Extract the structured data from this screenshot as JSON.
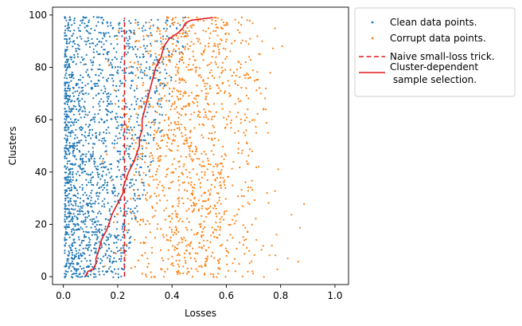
{
  "chart_data": {
    "type": "scatter",
    "xlabel": "Losses",
    "ylabel": "Clusters",
    "xlim": [
      -0.04,
      1.05
    ],
    "ylim": [
      -3,
      103
    ],
    "xticks": [
      "0.0",
      "0.2",
      "0.4",
      "0.6",
      "0.8",
      "1.0"
    ],
    "yticks": [
      "0",
      "20",
      "40",
      "60",
      "80",
      "100"
    ],
    "grid": false,
    "legend_placement": "outside-top-right",
    "legend": [
      {
        "label": "Clean data points.",
        "marker": "dot",
        "color": "#1f77b4"
      },
      {
        "label": "Corrupt data points.",
        "marker": "dot",
        "color": "#ff7f0e"
      },
      {
        "label": "Naive small-loss trick.",
        "marker": "dashed-line",
        "color": "#e31a1c"
      },
      {
        "label": "Cluster-dependent\n sample selection.",
        "marker": "solid-line",
        "color": "#e31a1c"
      }
    ],
    "series": [
      {
        "name": "Clean data points.",
        "kind": "scatter",
        "color": "#1f77b4",
        "distribution": {
          "clusters": [
            0,
            99
          ],
          "loss_range": [
            0.0,
            0.45
          ],
          "points_per_cluster": 18,
          "concentration_near_zero": true
        }
      },
      {
        "name": "Corrupt data points.",
        "kind": "scatter",
        "color": "#ff7f0e",
        "distribution": {
          "clusters": [
            0,
            99
          ],
          "loss_range": [
            0.1,
            1.0
          ],
          "points_per_cluster": 12,
          "center": 0.42
        }
      },
      {
        "name": "Naive small-loss trick.",
        "kind": "vline",
        "color": "#e31a1c",
        "x": 0.225,
        "y_range": [
          0,
          99
        ]
      },
      {
        "name": "Cluster-dependent\n sample selection.",
        "kind": "line",
        "color": "#e31a1c",
        "points": [
          [
            0.08,
            0
          ],
          [
            0.09,
            2
          ],
          [
            0.11,
            3
          ],
          [
            0.12,
            5
          ],
          [
            0.12,
            7
          ],
          [
            0.13,
            10
          ],
          [
            0.14,
            14
          ],
          [
            0.15,
            16
          ],
          [
            0.16,
            18
          ],
          [
            0.17,
            21
          ],
          [
            0.18,
            24
          ],
          [
            0.19,
            26
          ],
          [
            0.2,
            28
          ],
          [
            0.21,
            30
          ],
          [
            0.22,
            32
          ],
          [
            0.22,
            34
          ],
          [
            0.23,
            37
          ],
          [
            0.24,
            40
          ],
          [
            0.25,
            42
          ],
          [
            0.26,
            44
          ],
          [
            0.27,
            47
          ],
          [
            0.28,
            50
          ],
          [
            0.28,
            53
          ],
          [
            0.29,
            56
          ],
          [
            0.29,
            60
          ],
          [
            0.3,
            64
          ],
          [
            0.31,
            68
          ],
          [
            0.32,
            72
          ],
          [
            0.33,
            76
          ],
          [
            0.34,
            80
          ],
          [
            0.36,
            84
          ],
          [
            0.37,
            88
          ],
          [
            0.39,
            91
          ],
          [
            0.42,
            93
          ],
          [
            0.44,
            95
          ],
          [
            0.45,
            97
          ],
          [
            0.47,
            98
          ],
          [
            0.55,
            99
          ]
        ]
      }
    ]
  }
}
